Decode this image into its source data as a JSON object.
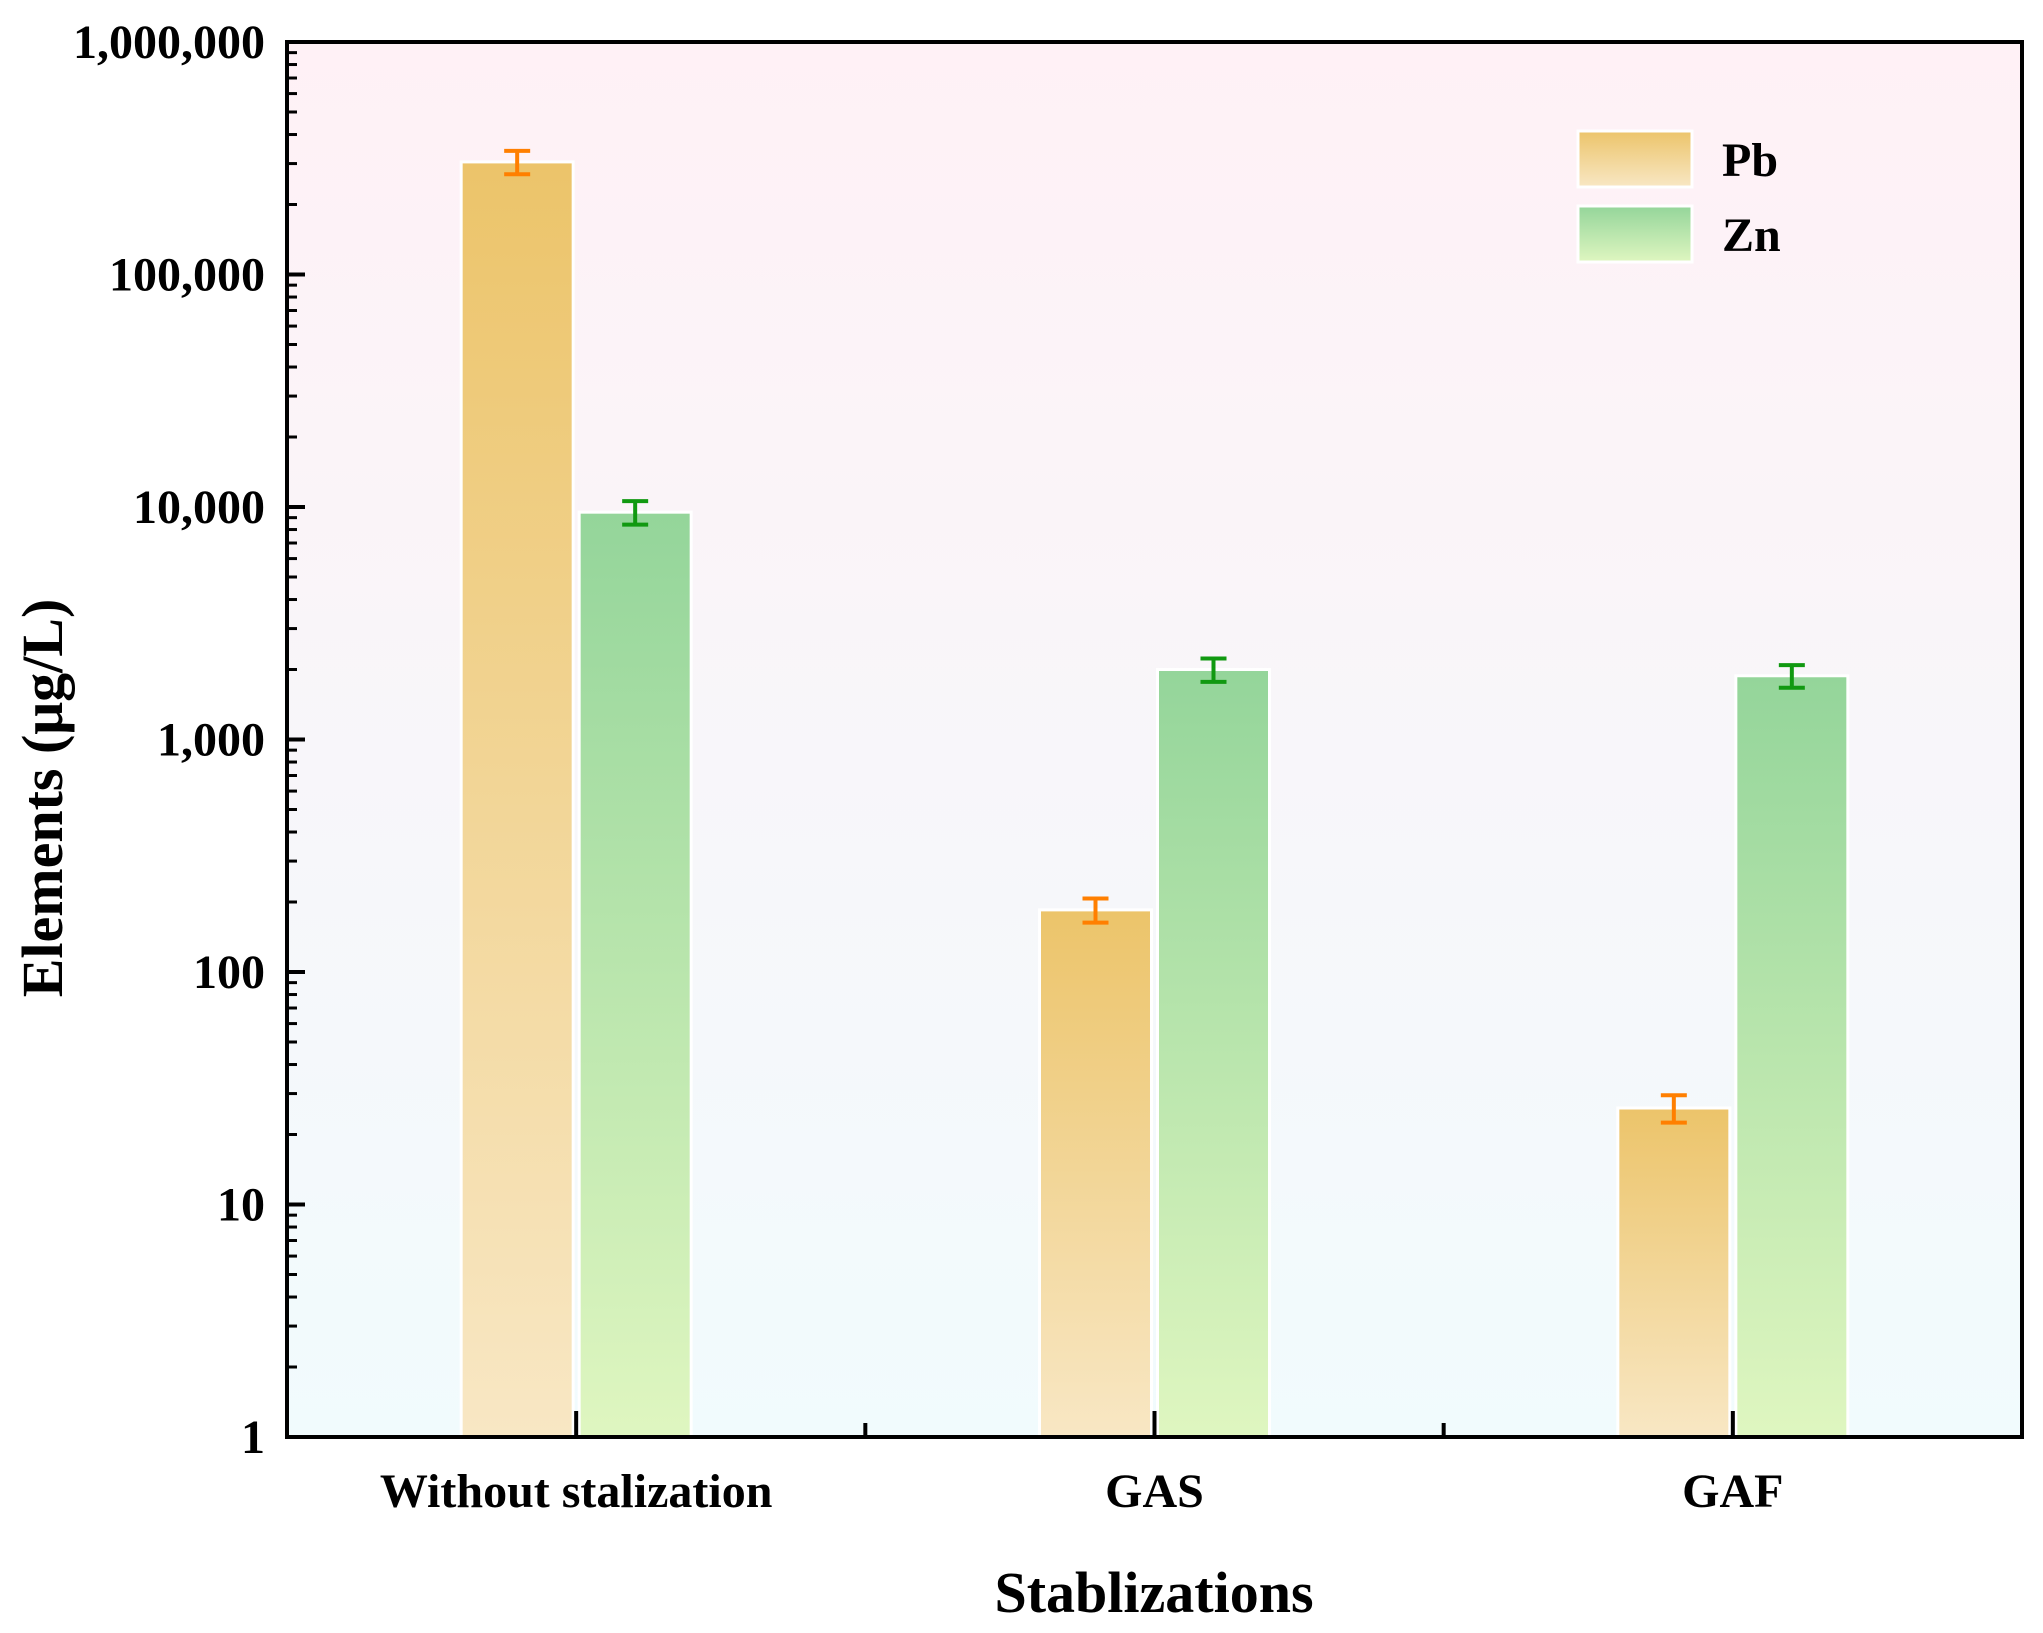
{
  "chart_data": {
    "type": "bar",
    "scale": "log",
    "title": "",
    "xlabel": "Stablizations",
    "ylabel": "Elements (μg/L)",
    "categories": [
      "Without stalization",
      "GAS",
      "GAF"
    ],
    "series": [
      {
        "name": "Pb",
        "values": [
          305000,
          185,
          26
        ],
        "errors": [
          35000,
          22,
          3.5
        ],
        "color_top": "#ecc46a",
        "color_bottom": "#f8e7c4",
        "error_color": "#ff7f00"
      },
      {
        "name": "Zn",
        "values": [
          9500,
          2000,
          1880
        ],
        "errors": [
          1100,
          230,
          210
        ],
        "color_top": "#94d59a",
        "color_bottom": "#dff6c0",
        "error_color": "#119911"
      }
    ],
    "ylim": [
      1,
      1000000
    ],
    "yticks": [
      1,
      10,
      100,
      1000,
      10000,
      100000,
      1000000
    ],
    "ytick_labels": [
      "1",
      "10",
      "100",
      "1,000",
      "10,000",
      "100,000",
      "1,000,000"
    ],
    "legend_position": "top-right",
    "background_top": "#fff1f6",
    "background_bottom": "#f1fbfd"
  }
}
